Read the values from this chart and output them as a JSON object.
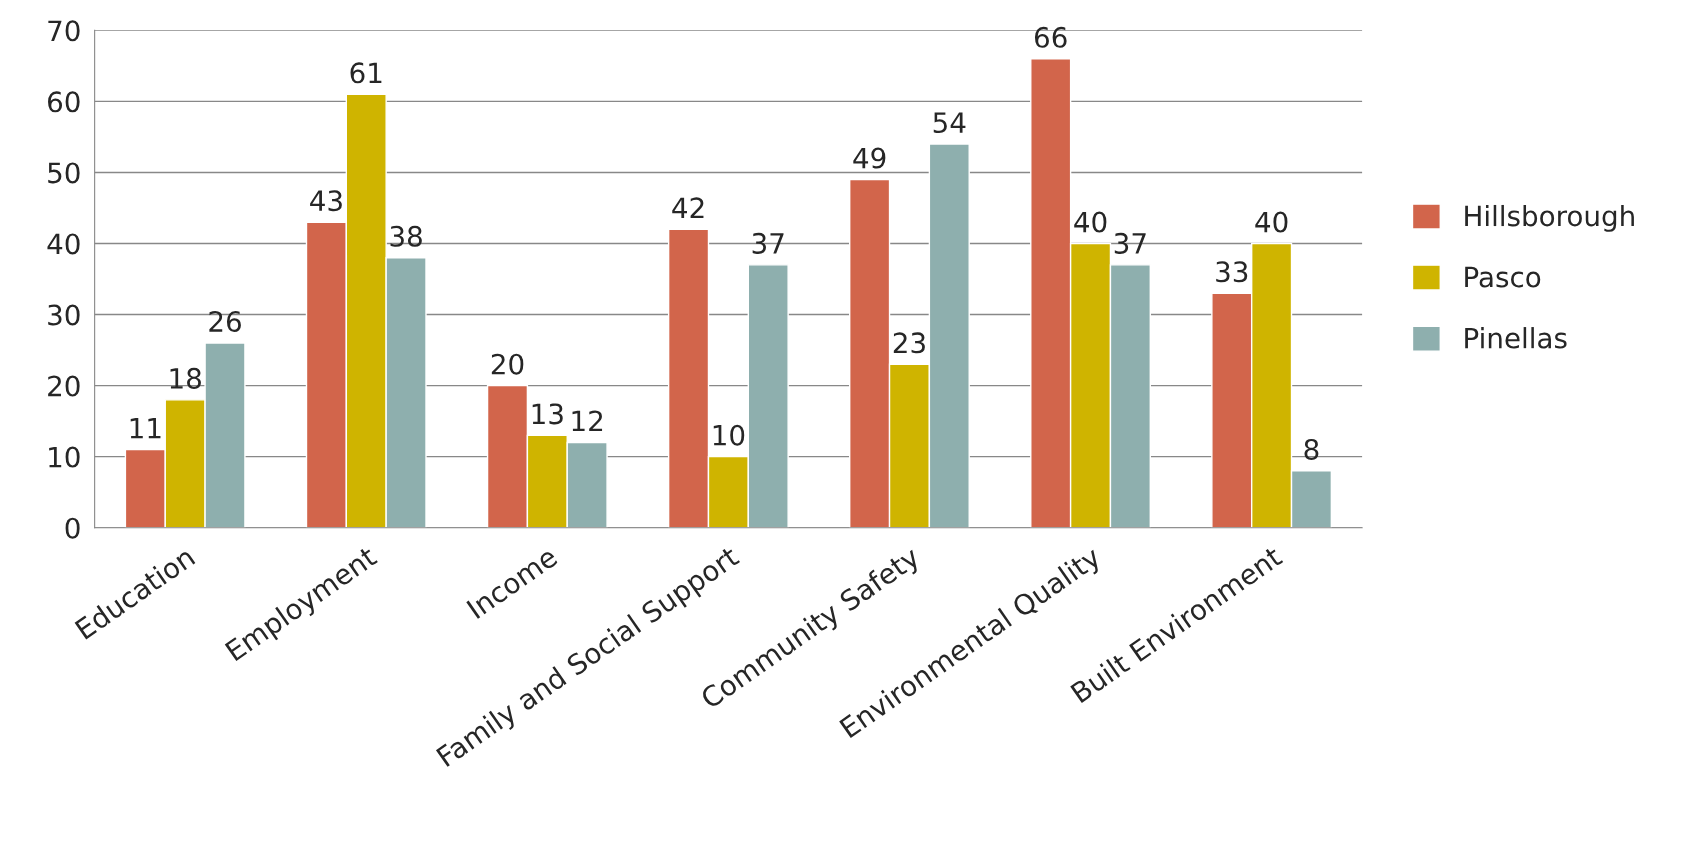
{
  "chart_data": {
    "type": "bar",
    "categories": [
      "Education",
      "Employment",
      "Income",
      "Family and Social Support",
      "Community Safety",
      "Environmental Quality",
      "Built Environment"
    ],
    "series": [
      {
        "name": "Hillsborough",
        "color": "#d2654b",
        "values": [
          11,
          43,
          20,
          42,
          49,
          66,
          33
        ]
      },
      {
        "name": "Pasco",
        "color": "#cfb400",
        "values": [
          18,
          61,
          13,
          10,
          23,
          40,
          40
        ]
      },
      {
        "name": "Pinellas",
        "color": "#8eafae",
        "values": [
          26,
          38,
          12,
          37,
          54,
          37,
          8
        ]
      }
    ],
    "ylim": [
      0,
      70
    ],
    "yticks": [
      0,
      10,
      20,
      30,
      40,
      50,
      60,
      70
    ],
    "grid": "y",
    "legend": "right",
    "data_labels": true
  }
}
